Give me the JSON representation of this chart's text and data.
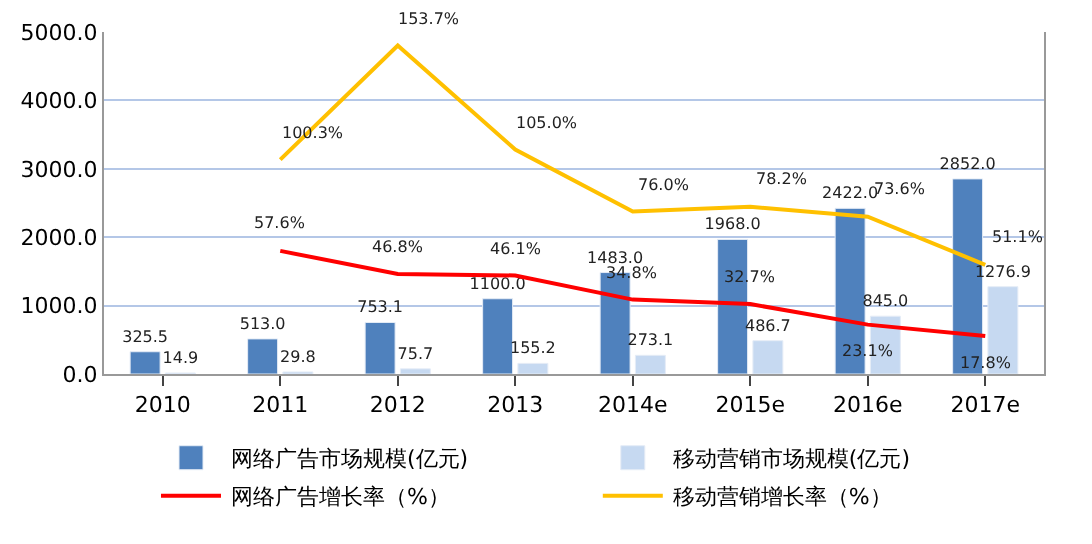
{
  "chart_data": {
    "type": "bar",
    "categories": [
      "2010",
      "2011",
      "2012",
      "2013",
      "2014e",
      "2015e",
      "2016e",
      "2017e"
    ],
    "series": [
      {
        "name": "网络广告市场规模(亿元)",
        "color": "#4f81bd",
        "values": [
          325.5,
          513.0,
          753.1,
          1100.0,
          1483.0,
          1968.0,
          2422.0,
          2852.0
        ],
        "value_labels": [
          "325.5",
          "513.0",
          "753.1",
          "1100.0",
          "1483.0",
          "1968.0",
          "2422.0",
          "2852.0"
        ]
      },
      {
        "name": "移动营销市场规模(亿元)",
        "color": "#c6d9f1",
        "values": [
          14.9,
          29.8,
          75.7,
          155.2,
          273.1,
          486.7,
          845.0,
          1276.9
        ],
        "value_labels": [
          "14.9",
          "29.8",
          "75.7",
          "155.2",
          "273.1",
          "486.7",
          "845.0",
          "1276.9"
        ]
      },
      {
        "name": "网络广告增长率（%）",
        "type": "line",
        "axis": "y2",
        "color": "#ff0000",
        "values": [
          null,
          57.6,
          46.8,
          46.1,
          34.8,
          32.7,
          23.1,
          17.8
        ],
        "value_labels": [
          null,
          "57.6%",
          "46.8%",
          "46.1%",
          "34.8%",
          "32.7%",
          "23.1%",
          "17.8%"
        ]
      },
      {
        "name": "移动营销增长率（%）",
        "type": "line",
        "axis": "y2",
        "color": "#ffc000",
        "values": [
          null,
          100.3,
          153.7,
          105.0,
          76.0,
          78.2,
          73.6,
          51.1
        ],
        "value_labels": [
          null,
          "100.3%",
          "153.7%",
          "105.0%",
          "76.0%",
          "78.2%",
          "73.6%",
          "51.1%"
        ]
      }
    ],
    "ylim": [
      0,
      5000
    ],
    "yticks": [
      {
        "value": 0,
        "label": "0.0"
      },
      {
        "value": 1000,
        "label": "1000.0"
      },
      {
        "value": 2000,
        "label": "2000.0"
      },
      {
        "value": 3000,
        "label": "3000.0"
      },
      {
        "value": 4000,
        "label": "4000.0"
      },
      {
        "value": 5000,
        "label": "5000.0"
      }
    ],
    "y2lim": [
      0,
      160
    ],
    "tick_labels": "xy",
    "grid": "y",
    "legend": "bottom",
    "marker": "none",
    "line_style": "solid"
  }
}
